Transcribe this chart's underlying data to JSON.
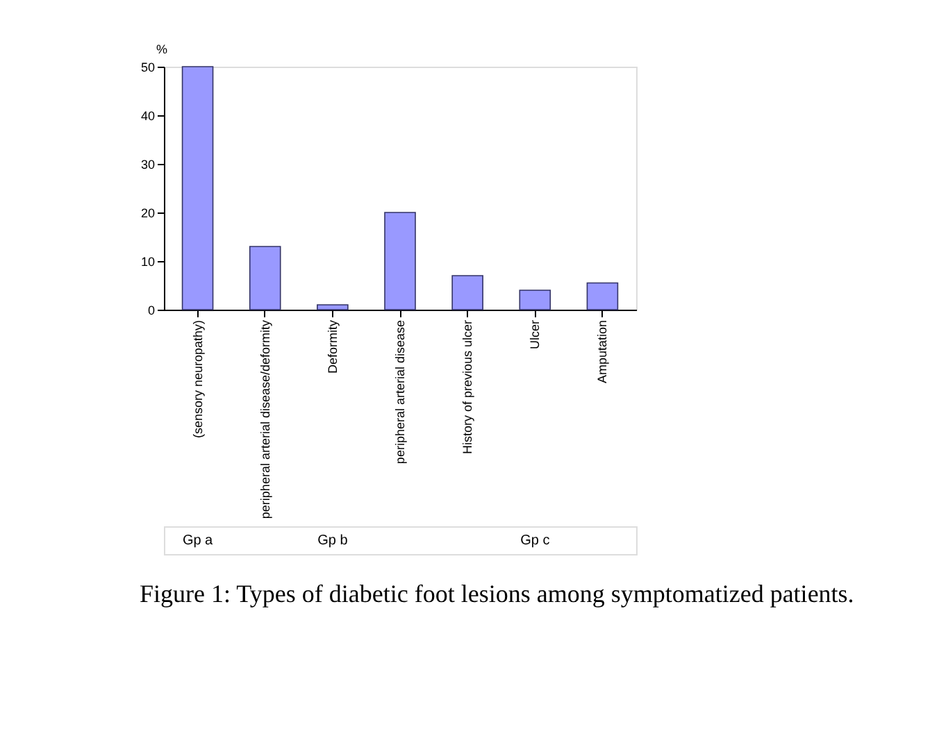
{
  "chart_data": {
    "type": "bar",
    "title": "Figure 1: Types of diabetic foot lesions among symptomatized patients.",
    "ylabel": "%",
    "categories": [
      "(sensory neuropathy)",
      "peripheral arterial disease/deformity",
      "Deformity",
      "peripheral arterial disease",
      "History of previous ulcer",
      "Ulcer",
      "Amputation"
    ],
    "values": [
      50,
      13,
      1,
      20,
      7,
      4,
      5.5
    ],
    "color": "#9999ff",
    "ylim": [
      0,
      50
    ],
    "yticks": [
      0,
      10,
      20,
      30,
      40,
      50
    ],
    "grid": false,
    "annotations": [
      "Gp a",
      "Gp b",
      "Gp c"
    ]
  }
}
